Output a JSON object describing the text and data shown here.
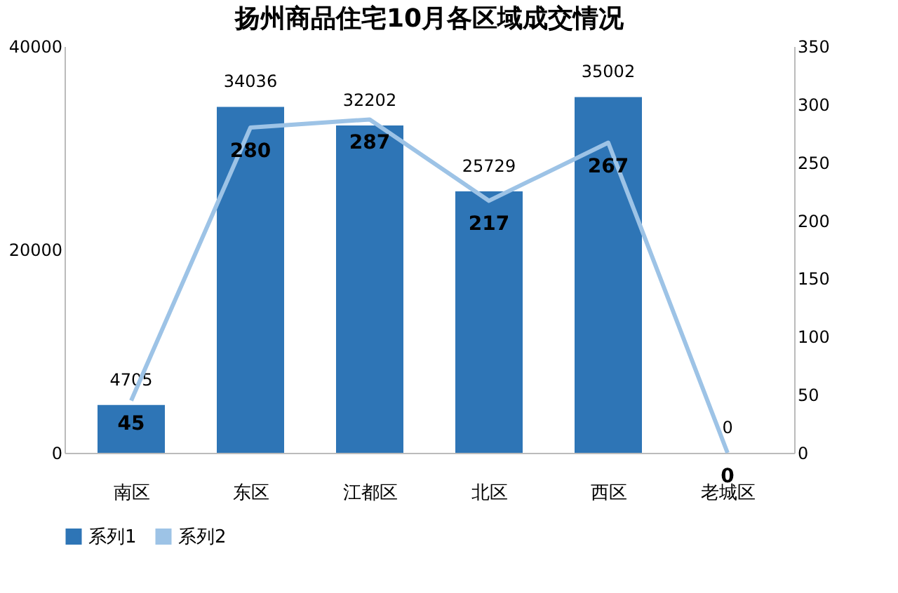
{
  "chart_data": {
    "type": "bar",
    "title": "扬州商品住宅10月各区域成交情况",
    "categories": [
      "南区",
      "东区",
      "江都区",
      "北区",
      "西区",
      "老城区"
    ],
    "series": [
      {
        "name": "系列1",
        "color": "#2e75b6",
        "values": [
          4705,
          34036,
          32202,
          25729,
          35002,
          0
        ]
      },
      {
        "name": "系列2",
        "type": "line",
        "axis": "y2",
        "color": "#9dc3e6",
        "values": [
          45,
          280,
          287,
          217,
          267,
          0
        ]
      }
    ],
    "ylim": [
      0,
      40000
    ],
    "yticks": [
      0,
      20000,
      40000
    ],
    "y2lim": [
      0,
      350
    ],
    "y2ticks": [
      0,
      50,
      100,
      150,
      200,
      250,
      300,
      350
    ],
    "data_labels": true,
    "grid": false,
    "legend": "bottom",
    "marker": "none",
    "line_style": "solid"
  }
}
